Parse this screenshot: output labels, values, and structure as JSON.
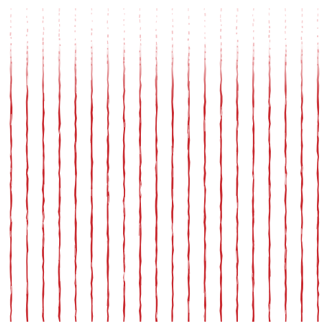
{
  "pattern": {
    "description_name": "red-stripes-pattern",
    "stripe_count": 20,
    "stripe_color": "#c8262c",
    "stripe_highlight_color": "#e8858a",
    "background_color": "#ffffff",
    "stripes": [
      {
        "id": 1
      },
      {
        "id": 2
      },
      {
        "id": 3
      },
      {
        "id": 4
      },
      {
        "id": 5
      },
      {
        "id": 6
      },
      {
        "id": 7
      },
      {
        "id": 8
      },
      {
        "id": 9
      },
      {
        "id": 10
      },
      {
        "id": 11
      },
      {
        "id": 12
      },
      {
        "id": 13
      },
      {
        "id": 14
      },
      {
        "id": 15
      },
      {
        "id": 16
      },
      {
        "id": 17
      },
      {
        "id": 18
      },
      {
        "id": 19
      },
      {
        "id": 20
      }
    ]
  }
}
